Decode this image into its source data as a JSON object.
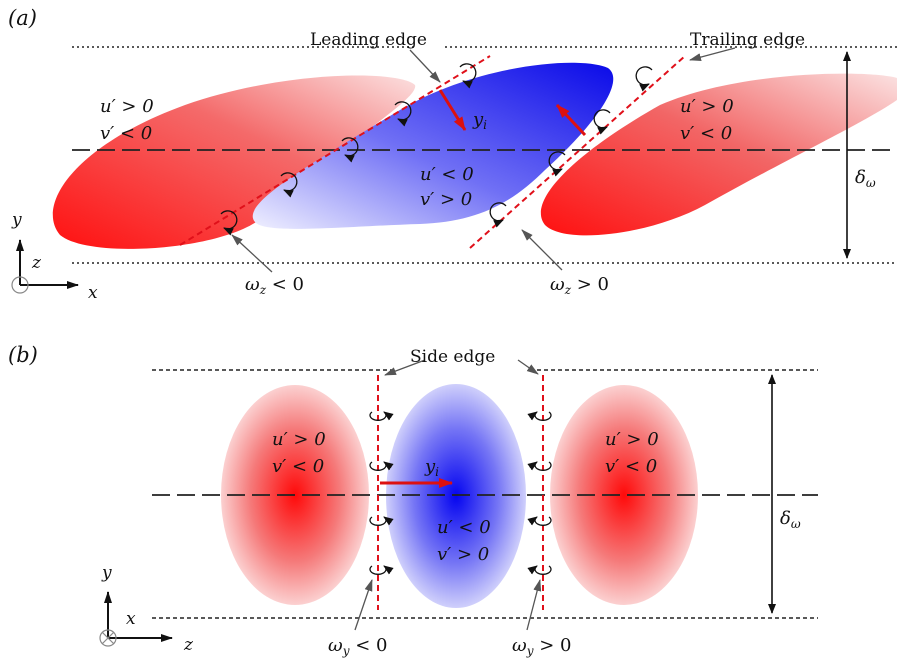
{
  "panel_a": {
    "label": "(a)",
    "leading_edge": "Leading edge",
    "trailing_edge": "Trailing edge",
    "left_u": "u′ > 0",
    "left_v": "v′ < 0",
    "center_u": "u′ < 0",
    "center_v": "v′ > 0",
    "right_u": "u′ > 0",
    "right_v": "v′ < 0",
    "yi": "y",
    "yi_sub": "i",
    "omega_neg": "ω",
    "omega_neg_sub": "z",
    "omega_neg_rel": " < 0",
    "omega_pos": "ω",
    "omega_pos_sub": "z",
    "omega_pos_rel": " > 0",
    "delta": "δ",
    "delta_sub": "ω",
    "axis_y": "y",
    "axis_z": "z",
    "axis_x": "x"
  },
  "panel_b": {
    "label": "(b)",
    "side_edge": "Side edge",
    "left_u": "u′ > 0",
    "left_v": "v′ < 0",
    "center_u": "u′ < 0",
    "center_v": "v′ > 0",
    "right_u": "u′ > 0",
    "right_v": "v′ < 0",
    "yi": "y",
    "yi_sub": "i",
    "omega_neg": "ω",
    "omega_neg_sub": "y",
    "omega_neg_rel": " < 0",
    "omega_pos": "ω",
    "omega_pos_sub": "y",
    "omega_pos_rel": " > 0",
    "delta": "δ",
    "delta_sub": "ω",
    "axis_y": "y",
    "axis_x": "x",
    "axis_z": "z"
  },
  "colors": {
    "red_core": "#ff1a1a",
    "blue_core": "#1a1aff",
    "dashed_red": "#e0101a",
    "arrow_red": "#dd1010"
  }
}
